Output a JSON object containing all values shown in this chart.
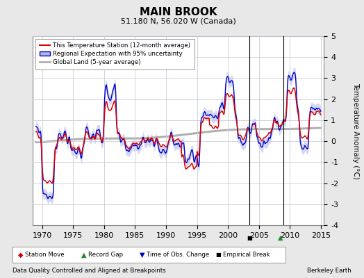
{
  "title": "MAIN BROOK",
  "subtitle": "51.180 N, 56.020 W (Canada)",
  "ylabel": "Temperature Anomaly (°C)",
  "xlabel_note": "Data Quality Controlled and Aligned at Breakpoints",
  "credit": "Berkeley Earth",
  "xlim": [
    1968.5,
    2015.5
  ],
  "ylim": [
    -4,
    5
  ],
  "yticks": [
    -4,
    -3,
    -2,
    -1,
    0,
    1,
    2,
    3,
    4,
    5
  ],
  "xticks": [
    1970,
    1975,
    1980,
    1985,
    1990,
    1995,
    2000,
    2005,
    2010,
    2015
  ],
  "red_color": "#dd0000",
  "blue_color": "#0000cc",
  "blue_fill_color": "#b0b8e8",
  "gray_color": "#b0b0b0",
  "plot_bg": "#ffffff",
  "fig_bg": "#e8e8e8",
  "legend_labels": [
    "This Temperature Station (12-month average)",
    "Regional Expectation with 95% uncertainty",
    "Global Land (5-year average)"
  ],
  "vline1": 2003.5,
  "vline2": 2009.0,
  "marker_empirical_x": 2003.5,
  "marker_record_gap_x": 2008.5
}
